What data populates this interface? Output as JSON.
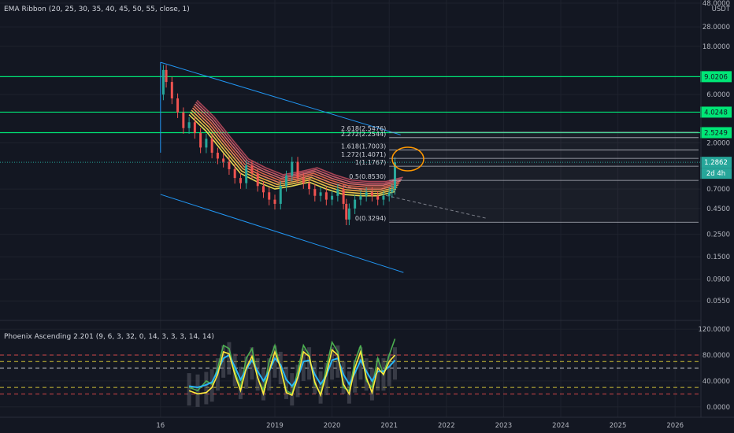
{
  "chart_data": [
    {
      "type": "line",
      "pane": "price",
      "indicator_label": "EMA Ribbon (20, 25, 30, 35, 40, 45, 50, 55, close, 1)",
      "y_scale": "log",
      "y_range": [
        0.04,
        48.0
      ],
      "y_ticks": [
        "48.0000",
        "28.0000",
        "18.0000",
        "6.0000",
        "2.0000",
        "0.7000",
        "0.4500",
        "0.2500",
        "0.1500",
        "0.0900",
        "0.0550"
      ],
      "y_tick_values": [
        48,
        28,
        18,
        6,
        2,
        0.7,
        0.45,
        0.25,
        0.15,
        0.09,
        0.055
      ],
      "currency": "USDT",
      "x_ticks": [
        "16",
        "2019",
        "2020",
        "2021",
        "2022",
        "2023",
        "2024",
        "2025",
        "2026"
      ],
      "x_tick_values": [
        2017.0,
        2019.0,
        2020.0,
        2021.0,
        2022.0,
        2023.0,
        2024.0,
        2025.0,
        2026.0
      ],
      "horizontal_levels": [
        {
          "label": "9.0206",
          "value": 9.0206,
          "color": "#00e676"
        },
        {
          "label": "4.0248",
          "value": 4.0248,
          "color": "#00e676"
        },
        {
          "label": "2.5249",
          "value": 2.5249,
          "color": "#00e676"
        }
      ],
      "last_price": {
        "label": "1.2862",
        "value": 1.2862,
        "countdown": "2d 4h",
        "color": "#26a69a"
      },
      "fib_levels": [
        {
          "label": "2.618(2.5476)",
          "value": 2.5476
        },
        {
          "label": "2.272(2.2544)",
          "value": 2.2544
        },
        {
          "label": "1.618(1.7003)",
          "value": 1.7003
        },
        {
          "label": "1.272(1.4071)",
          "value": 1.4071
        },
        {
          "label": "1(1.1767)",
          "value": 1.1767
        },
        {
          "label": "0.5(0.8530)",
          "value": 0.853
        },
        {
          "label": "0(0.3294)",
          "value": 0.3294
        }
      ],
      "series": [
        {
          "name": "price",
          "x": [
            2017.0,
            2017.05,
            2017.1,
            2017.2,
            2017.3,
            2017.4,
            2017.5,
            2017.6,
            2017.7,
            2017.8,
            2017.9,
            2018.0,
            2018.1,
            2018.2,
            2018.3,
            2018.4,
            2018.5,
            2018.6,
            2018.7,
            2018.8,
            2018.9,
            2019.0,
            2019.1,
            2019.2,
            2019.3,
            2019.4,
            2019.5,
            2019.6,
            2019.7,
            2019.8,
            2019.9,
            2020.0,
            2020.1,
            2020.2,
            2020.25,
            2020.3,
            2020.4,
            2020.5,
            2020.6,
            2020.7,
            2020.8,
            2020.9,
            2021.0,
            2021.05,
            2021.1
          ],
          "y": [
            6.0,
            10.5,
            8.0,
            5.5,
            4.0,
            2.8,
            3.2,
            2.5,
            1.8,
            2.2,
            1.6,
            1.4,
            1.3,
            1.1,
            0.9,
            0.8,
            1.2,
            1.0,
            0.75,
            0.65,
            0.55,
            0.5,
            0.75,
            0.95,
            1.3,
            0.9,
            0.8,
            0.7,
            0.6,
            0.65,
            0.55,
            0.6,
            0.7,
            0.5,
            0.35,
            0.45,
            0.55,
            0.6,
            0.65,
            0.6,
            0.55,
            0.6,
            0.65,
            0.7,
            1.2862
          ]
        }
      ]
    },
    {
      "type": "line",
      "pane": "oscillator",
      "indicator_label": "Phoenix Ascending 2.201 (9, 6, 3, 32, 0, 14, 3, 3, 3, 14, 14)",
      "y_ticks": [
        "120.0000",
        "80.0000",
        "40.0000",
        "0.0000"
      ],
      "y_tick_values": [
        120,
        80,
        40,
        0
      ],
      "y_range": [
        -10,
        125
      ],
      "reference_levels": [
        80,
        70,
        60,
        30,
        20
      ],
      "series": [
        {
          "name": "green",
          "color": "#4caf50",
          "x": [
            2017.5,
            2017.65,
            2017.8,
            2017.9,
            2018.0,
            2018.1,
            2018.2,
            2018.3,
            2018.4,
            2018.5,
            2018.6,
            2018.7,
            2018.8,
            2018.9,
            2019.0,
            2019.1,
            2019.2,
            2019.3,
            2019.4,
            2019.5,
            2019.6,
            2019.7,
            2019.8,
            2019.9,
            2020.0,
            2020.1,
            2020.2,
            2020.3,
            2020.4,
            2020.5,
            2020.6,
            2020.7,
            2020.8,
            2020.9,
            2021.0,
            2021.1
          ],
          "y": [
            30,
            25,
            40,
            35,
            60,
            95,
            90,
            55,
            30,
            75,
            90,
            45,
            25,
            70,
            95,
            60,
            25,
            20,
            55,
            95,
            80,
            35,
            20,
            60,
            100,
            85,
            30,
            25,
            70,
            95,
            40,
            30,
            75,
            50,
            80,
            105
          ]
        },
        {
          "name": "blue",
          "color": "#29b6f6",
          "x": [
            2017.5,
            2017.65,
            2017.8,
            2017.9,
            2018.0,
            2018.1,
            2018.2,
            2018.3,
            2018.4,
            2018.5,
            2018.6,
            2018.7,
            2018.8,
            2018.9,
            2019.0,
            2019.1,
            2019.2,
            2019.3,
            2019.4,
            2019.5,
            2019.6,
            2019.7,
            2019.8,
            2019.9,
            2020.0,
            2020.1,
            2020.2,
            2020.3,
            2020.4,
            2020.5,
            2020.6,
            2020.7,
            2020.8,
            2020.9,
            2021.0,
            2021.1
          ],
          "y": [
            32,
            30,
            34,
            38,
            55,
            75,
            80,
            62,
            42,
            58,
            72,
            55,
            40,
            55,
            75,
            65,
            42,
            32,
            45,
            70,
            72,
            50,
            35,
            48,
            72,
            75,
            50,
            35,
            52,
            72,
            55,
            40,
            55,
            55,
            62,
            72
          ]
        },
        {
          "name": "yellow",
          "color": "#ffeb3b",
          "x": [
            2017.5,
            2017.65,
            2017.8,
            2017.9,
            2018.0,
            2018.1,
            2018.2,
            2018.3,
            2018.4,
            2018.5,
            2018.6,
            2018.7,
            2018.8,
            2018.9,
            2019.0,
            2019.1,
            2019.2,
            2019.3,
            2019.4,
            2019.5,
            2019.6,
            2019.7,
            2019.8,
            2019.9,
            2020.0,
            2020.1,
            2020.2,
            2020.3,
            2020.4,
            2020.5,
            2020.6,
            2020.7,
            2020.8,
            2020.9,
            2021.0,
            2021.1
          ],
          "y": [
            25,
            20,
            22,
            30,
            50,
            85,
            82,
            50,
            25,
            60,
            78,
            45,
            20,
            55,
            85,
            60,
            22,
            18,
            45,
            85,
            78,
            38,
            18,
            50,
            88,
            80,
            35,
            20,
            60,
            85,
            45,
            22,
            60,
            50,
            70,
            80
          ]
        }
      ]
    }
  ],
  "colors": {
    "background": "#131722",
    "grid": "#1e222d",
    "axis_text": "#b2b5be",
    "level_green": "#00e676",
    "channel": "#2196f3",
    "last_price": "#26a69a",
    "annotation_circle": "#ff9800"
  }
}
